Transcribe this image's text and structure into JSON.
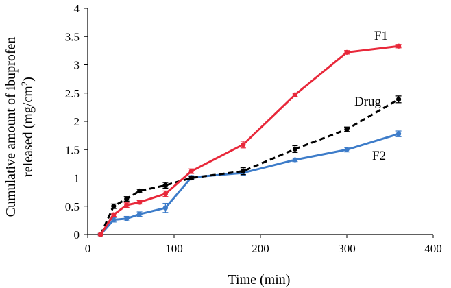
{
  "chart_data": {
    "type": "line",
    "title": "",
    "xlabel": "Time (min)",
    "ylabel_line1": "Cumulative amount of ibuprofen",
    "ylabel_line2": "released (mg/cm",
    "ylabel_sup": "2",
    "ylabel_close": ")",
    "xlim": [
      0,
      400
    ],
    "ylim": [
      0,
      4
    ],
    "xticks": [
      0,
      100,
      200,
      300,
      400
    ],
    "yticks": [
      0,
      0.5,
      1,
      1.5,
      2,
      2.5,
      3,
      3.5,
      4
    ],
    "ytick_labels": [
      "0",
      "0.5",
      "1",
      "1.5",
      "2",
      "2.5",
      "3",
      "3.5",
      "4"
    ],
    "grid": false,
    "series": [
      {
        "name": "F1",
        "color": "#e8283a",
        "dash": "solid",
        "x": [
          15,
          30,
          45,
          60,
          90,
          120,
          180,
          240,
          300,
          360
        ],
        "y": [
          0,
          0.35,
          0.52,
          0.57,
          0.72,
          1.12,
          1.59,
          2.47,
          3.22,
          3.33
        ],
        "err": [
          0.02,
          0.03,
          0.04,
          0.03,
          0.05,
          0.04,
          0.06,
          0.03,
          0.03,
          0.03
        ]
      },
      {
        "name": "Drug",
        "color": "#000000",
        "dash": "dashed",
        "x": [
          15,
          30,
          45,
          60,
          90,
          120,
          180,
          240,
          300,
          360
        ],
        "y": [
          0,
          0.5,
          0.63,
          0.77,
          0.87,
          1.0,
          1.12,
          1.51,
          1.86,
          2.39
        ],
        "err": [
          0.02,
          0.04,
          0.04,
          0.03,
          0.05,
          0.03,
          0.06,
          0.06,
          0.04,
          0.06
        ]
      },
      {
        "name": "F2",
        "color": "#3d7cc9",
        "dash": "solid",
        "x": [
          15,
          30,
          45,
          60,
          90,
          120,
          180,
          240,
          300,
          360
        ],
        "y": [
          0,
          0.26,
          0.28,
          0.36,
          0.47,
          1.01,
          1.09,
          1.32,
          1.5,
          1.78
        ],
        "err": [
          0.02,
          0.04,
          0.04,
          0.04,
          0.08,
          0.03,
          0.04,
          0.03,
          0.04,
          0.05
        ]
      }
    ]
  }
}
